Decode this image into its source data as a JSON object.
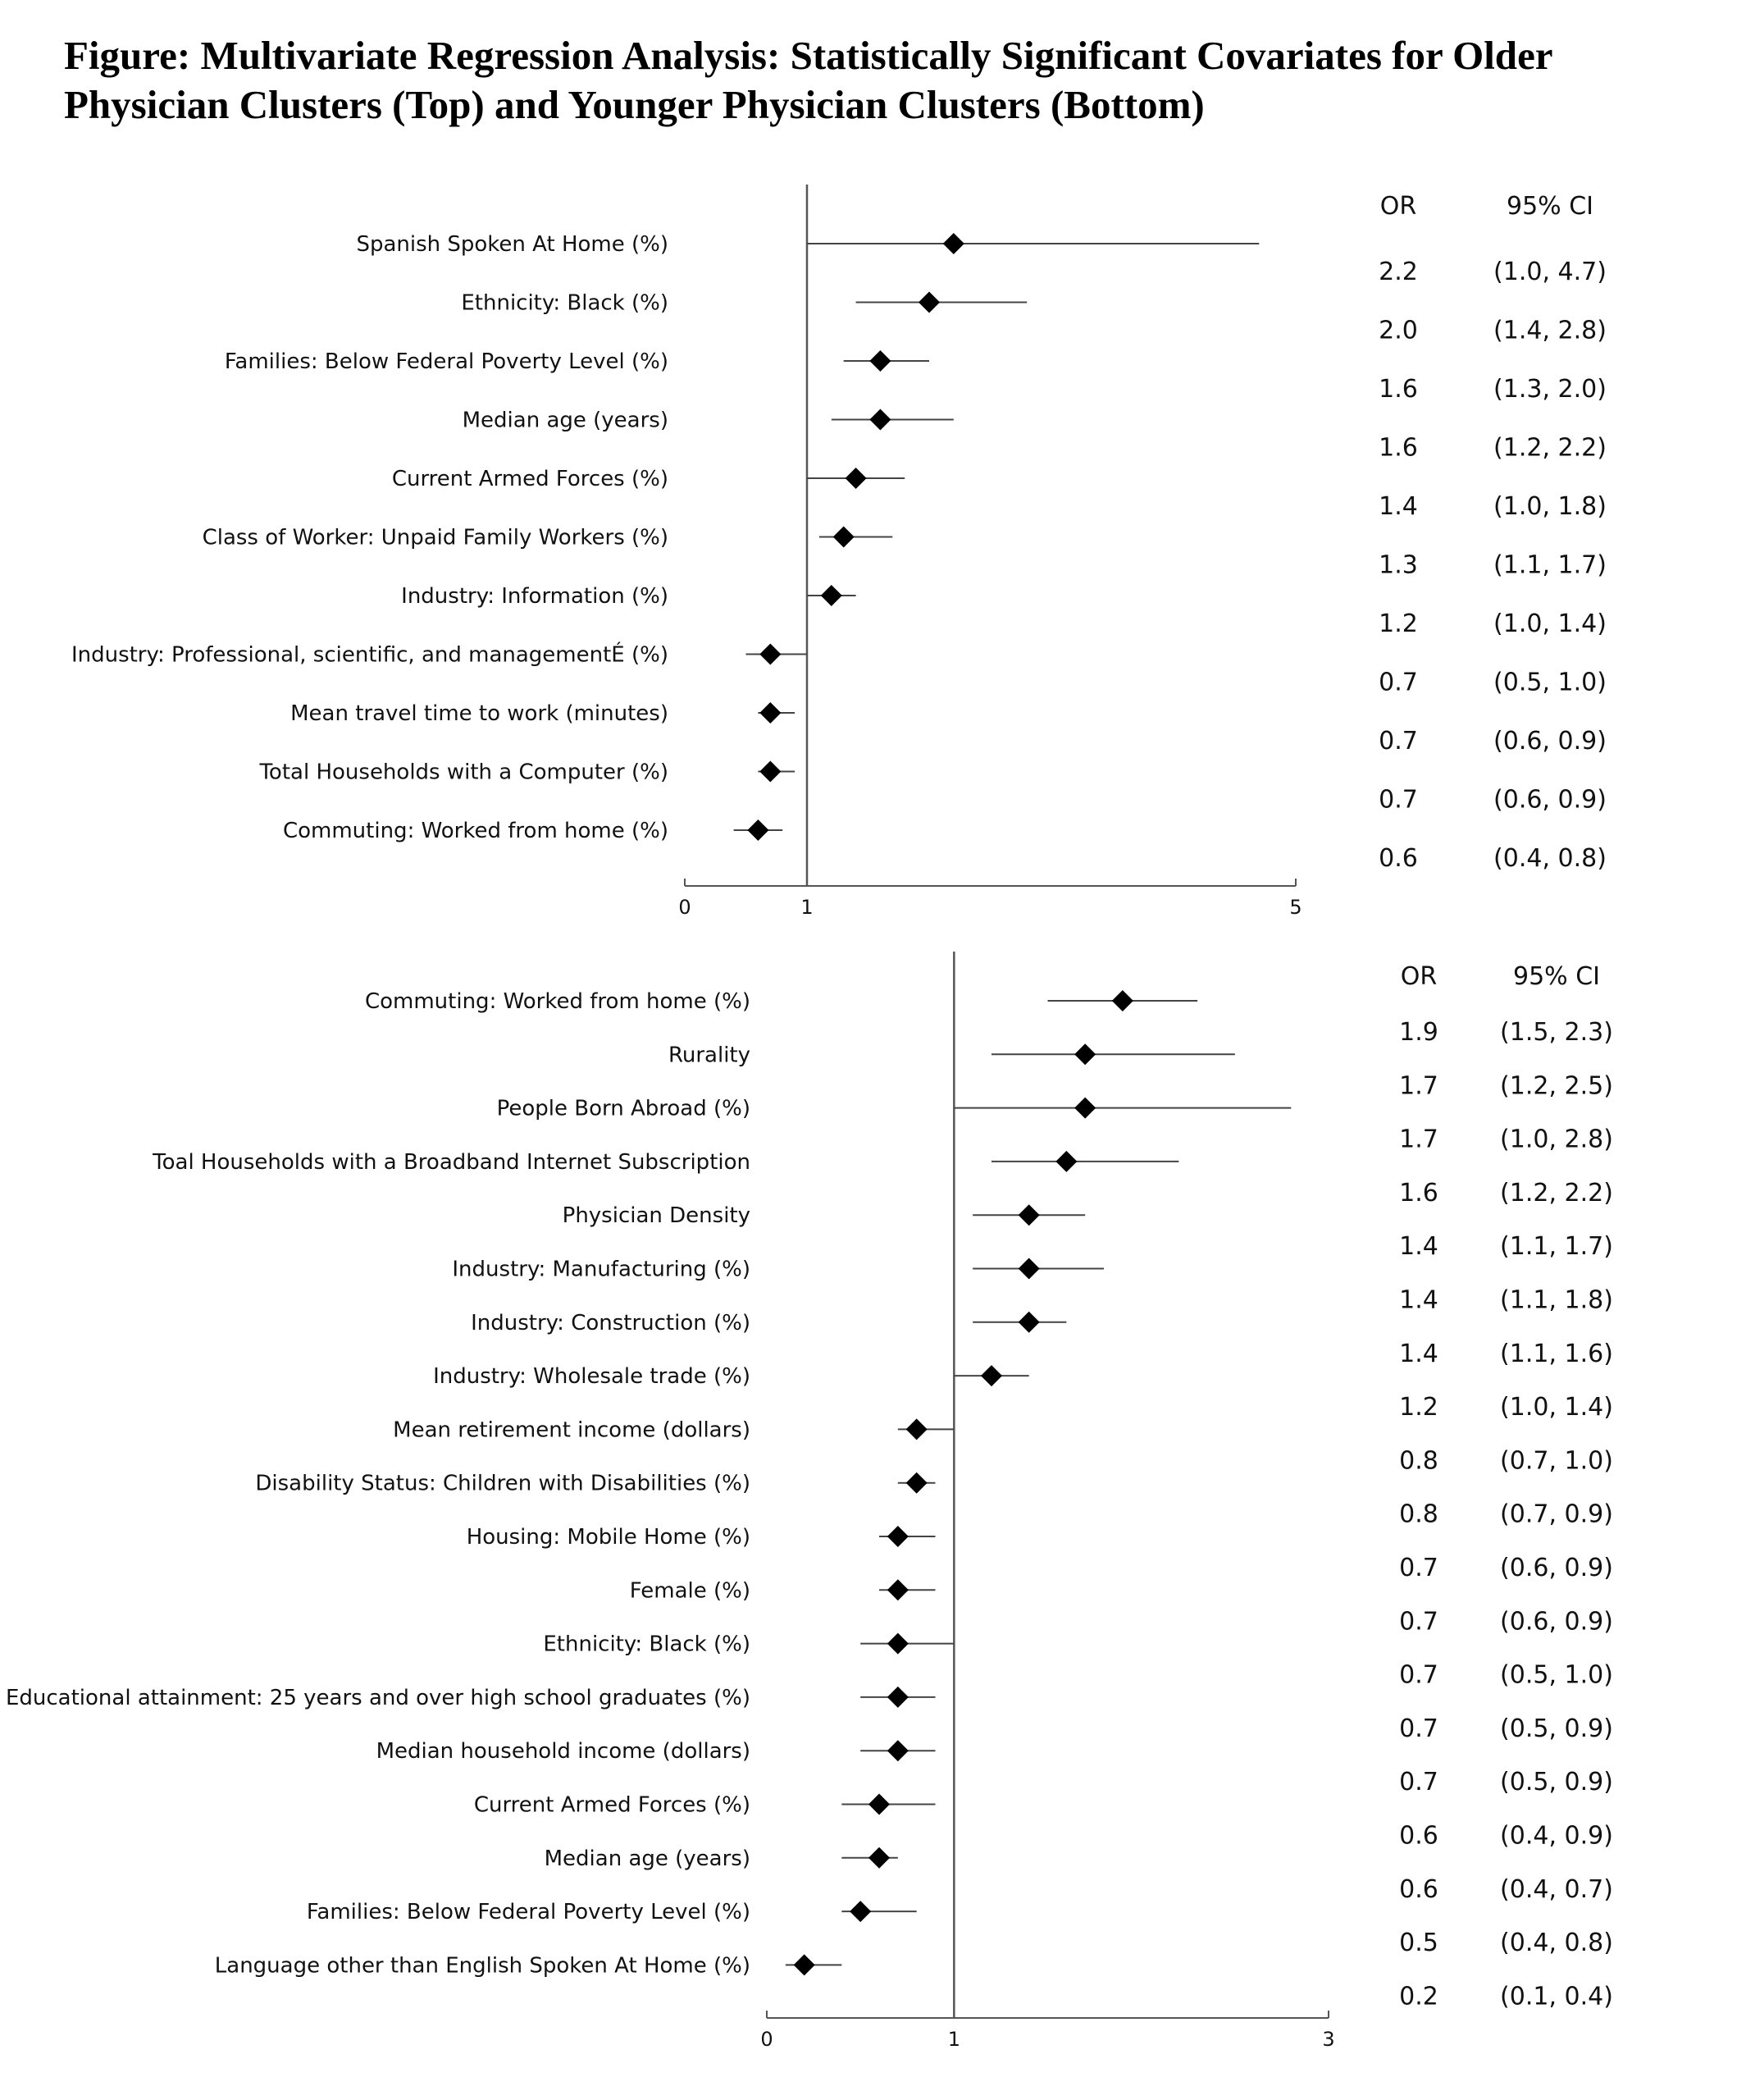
{
  "title": "Figure: Multivariate Regression Analysis: Statistically Significant Covariates for Older Physician Clusters (Top) and Younger Physician Clusters (Bottom)",
  "chart_data": [
    {
      "type": "forest",
      "panel": "top",
      "or_header": "OR",
      "ci_header": "95% CI",
      "x_ticks": [
        "0",
        "1",
        "5"
      ],
      "xlim": [
        0,
        5
      ],
      "reference_line": 1,
      "rows": [
        {
          "label": "Spanish Spoken At Home (%)",
          "or": 2.2,
          "lo": 1.0,
          "hi": 4.7,
          "or_text": "2.2",
          "ci_text": "(1.0, 4.7)"
        },
        {
          "label": "Ethnicity: Black (%)",
          "or": 2.0,
          "lo": 1.4,
          "hi": 2.8,
          "or_text": "2.0",
          "ci_text": "(1.4, 2.8)"
        },
        {
          "label": "Families: Below Federal Poverty Level (%)",
          "or": 1.6,
          "lo": 1.3,
          "hi": 2.0,
          "or_text": "1.6",
          "ci_text": "(1.3, 2.0)"
        },
        {
          "label": "Median age (years)",
          "or": 1.6,
          "lo": 1.2,
          "hi": 2.2,
          "or_text": "1.6",
          "ci_text": "(1.2, 2.2)"
        },
        {
          "label": "Current Armed Forces (%)",
          "or": 1.4,
          "lo": 1.0,
          "hi": 1.8,
          "or_text": "1.4",
          "ci_text": "(1.0, 1.8)"
        },
        {
          "label": "Class of Worker: Unpaid Family Workers (%)",
          "or": 1.3,
          "lo": 1.1,
          "hi": 1.7,
          "or_text": "1.3",
          "ci_text": "(1.1, 1.7)"
        },
        {
          "label": "Industry: Information (%)",
          "or": 1.2,
          "lo": 1.0,
          "hi": 1.4,
          "or_text": "1.2",
          "ci_text": "(1.0, 1.4)"
        },
        {
          "label": "Industry: Professional, scientific, and managementÉ (%)",
          "or": 0.7,
          "lo": 0.5,
          "hi": 1.0,
          "or_text": "0.7",
          "ci_text": "(0.5, 1.0)"
        },
        {
          "label": "Mean travel time to work (minutes)",
          "or": 0.7,
          "lo": 0.6,
          "hi": 0.9,
          "or_text": "0.7",
          "ci_text": "(0.6, 0.9)"
        },
        {
          "label": "Total Households with a Computer (%)",
          "or": 0.7,
          "lo": 0.6,
          "hi": 0.9,
          "or_text": "0.7",
          "ci_text": "(0.6, 0.9)"
        },
        {
          "label": "Commuting: Worked from home (%)",
          "or": 0.6,
          "lo": 0.4,
          "hi": 0.8,
          "or_text": "0.6",
          "ci_text": "(0.4, 0.8)"
        }
      ]
    },
    {
      "type": "forest",
      "panel": "bottom",
      "or_header": "OR",
      "ci_header": "95% CI",
      "x_ticks": [
        "0",
        "1",
        "3"
      ],
      "xlim": [
        0,
        3
      ],
      "reference_line": 1,
      "rows": [
        {
          "label": "Commuting: Worked from home (%)",
          "or": 1.9,
          "lo": 1.5,
          "hi": 2.3,
          "or_text": "1.9",
          "ci_text": "(1.5, 2.3)"
        },
        {
          "label": "Rurality",
          "or": 1.7,
          "lo": 1.2,
          "hi": 2.5,
          "or_text": "1.7",
          "ci_text": "(1.2, 2.5)"
        },
        {
          "label": "People Born Abroad (%)",
          "or": 1.7,
          "lo": 1.0,
          "hi": 2.8,
          "or_text": "1.7",
          "ci_text": "(1.0, 2.8)"
        },
        {
          "label": "Toal Households with a Broadband Internet Subscription",
          "or": 1.6,
          "lo": 1.2,
          "hi": 2.2,
          "or_text": "1.6",
          "ci_text": "(1.2, 2.2)"
        },
        {
          "label": "Physician Density",
          "or": 1.4,
          "lo": 1.1,
          "hi": 1.7,
          "or_text": "1.4",
          "ci_text": "(1.1, 1.7)"
        },
        {
          "label": "Industry: Manufacturing (%)",
          "or": 1.4,
          "lo": 1.1,
          "hi": 1.8,
          "or_text": "1.4",
          "ci_text": "(1.1, 1.8)"
        },
        {
          "label": "Industry: Construction (%)",
          "or": 1.4,
          "lo": 1.1,
          "hi": 1.6,
          "or_text": "1.4",
          "ci_text": "(1.1, 1.6)"
        },
        {
          "label": "Industry: Wholesale trade (%)",
          "or": 1.2,
          "lo": 1.0,
          "hi": 1.4,
          "or_text": "1.2",
          "ci_text": "(1.0, 1.4)"
        },
        {
          "label": "Mean retirement income (dollars)",
          "or": 0.8,
          "lo": 0.7,
          "hi": 1.0,
          "or_text": "0.8",
          "ci_text": "(0.7, 1.0)"
        },
        {
          "label": "Disability Status: Children with Disabilities (%)",
          "or": 0.8,
          "lo": 0.7,
          "hi": 0.9,
          "or_text": "0.8",
          "ci_text": "(0.7, 0.9)"
        },
        {
          "label": "Housing: Mobile Home (%)",
          "or": 0.7,
          "lo": 0.6,
          "hi": 0.9,
          "or_text": "0.7",
          "ci_text": "(0.6, 0.9)"
        },
        {
          "label": "Female (%)",
          "or": 0.7,
          "lo": 0.6,
          "hi": 0.9,
          "or_text": "0.7",
          "ci_text": "(0.6, 0.9)"
        },
        {
          "label": "Ethnicity: Black (%)",
          "or": 0.7,
          "lo": 0.5,
          "hi": 1.0,
          "or_text": "0.7",
          "ci_text": "(0.5, 1.0)"
        },
        {
          "label": "Educational attainment: 25 years and over high school graduates (%)",
          "or": 0.7,
          "lo": 0.5,
          "hi": 0.9,
          "or_text": "0.7",
          "ci_text": "(0.5, 0.9)"
        },
        {
          "label": "Median household income (dollars)",
          "or": 0.7,
          "lo": 0.5,
          "hi": 0.9,
          "or_text": "0.7",
          "ci_text": "(0.5, 0.9)"
        },
        {
          "label": "Current Armed Forces (%)",
          "or": 0.6,
          "lo": 0.4,
          "hi": 0.9,
          "or_text": "0.6",
          "ci_text": "(0.4, 0.9)"
        },
        {
          "label": "Median age (years)",
          "or": 0.6,
          "lo": 0.4,
          "hi": 0.7,
          "or_text": "0.6",
          "ci_text": "(0.4, 0.7)"
        },
        {
          "label": "Families: Below Federal Poverty Level (%)",
          "or": 0.5,
          "lo": 0.4,
          "hi": 0.8,
          "or_text": "0.5",
          "ci_text": "(0.4, 0.8)"
        },
        {
          "label": "Language other than English Spoken At Home (%)",
          "or": 0.2,
          "lo": 0.1,
          "hi": 0.4,
          "or_text": "0.2",
          "ci_text": "(0.1, 0.4)"
        }
      ]
    }
  ]
}
